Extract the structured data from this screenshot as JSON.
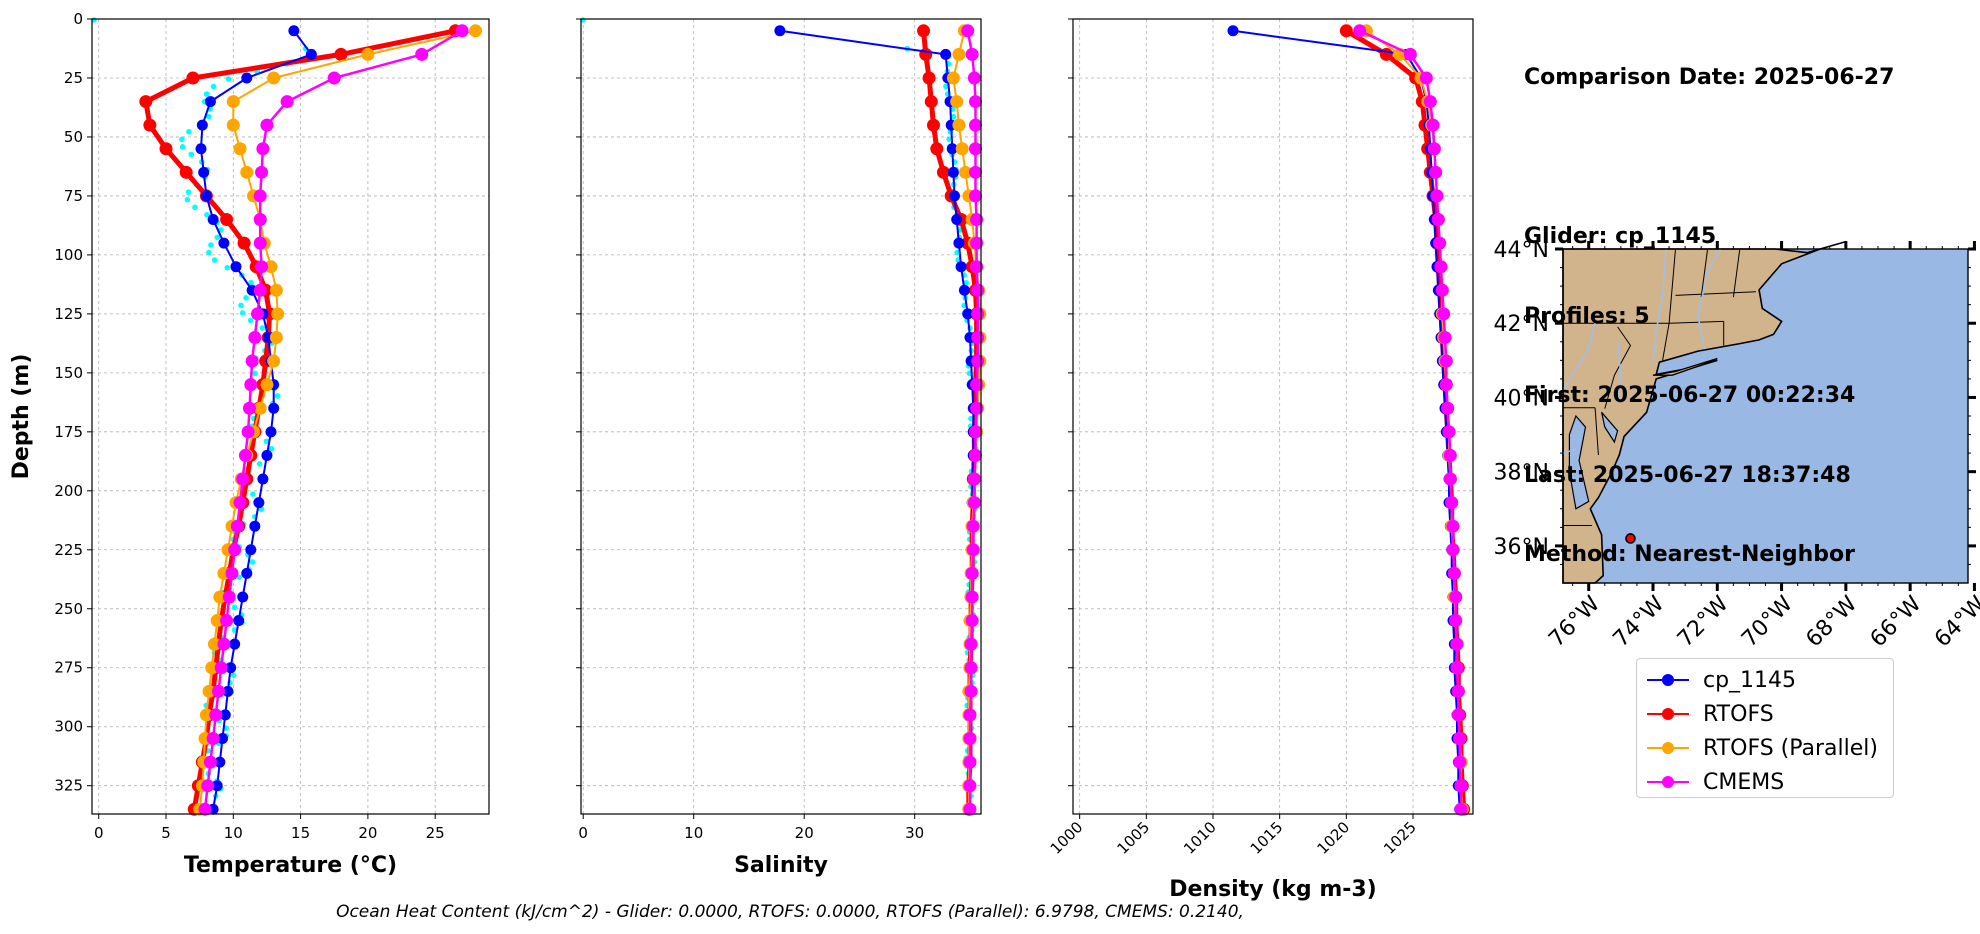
{
  "info": {
    "comparison_date": "Comparison Date: 2025-06-27",
    "glider": "Glider: cp_1145",
    "profiles": "Profiles: 5",
    "first": "First: 2025-06-27 00:22:34",
    "last": "Last: 2025-06-27 18:37:48",
    "method": "Method: Nearest-Neighbor"
  },
  "footer": "Ocean Heat Content (kJ/cm^2) - Glider: 0.0000,  RTOFS: 0.0000,  RTOFS (Parallel): 6.9798,  CMEMS: 0.2140,",
  "colors": {
    "glider": "#0000ff",
    "rtofs": "#ff0000",
    "rtofs_parallel": "#ffa500",
    "cmems": "#ff00ff",
    "raw": "#00ffff",
    "ocean": "#9ab8e4",
    "land": "#d2b48c"
  },
  "legend": [
    {
      "label": "cp_1145",
      "color": "#0000ff"
    },
    {
      "label": "RTOFS",
      "color": "#ff0000"
    },
    {
      "label": "RTOFS (Parallel)",
      "color": "#ffa500"
    },
    {
      "label": "CMEMS",
      "color": "#ff00ff"
    }
  ],
  "chart_data": [
    {
      "type": "line",
      "xlabel": "Temperature (°C)",
      "ylabel": "Depth (m)",
      "xlim": [
        -0.5,
        29
      ],
      "ylim": [
        337,
        0
      ],
      "xticks": [
        0,
        5,
        10,
        15,
        20,
        25
      ],
      "yticks": [
        0,
        25,
        50,
        75,
        100,
        125,
        150,
        175,
        200,
        225,
        250,
        275,
        300,
        325
      ],
      "grid": true,
      "depth": [
        5,
        15,
        25,
        35,
        45,
        55,
        65,
        75,
        85,
        95,
        105,
        115,
        125,
        135,
        145,
        155,
        165,
        175,
        185,
        195,
        205,
        215,
        225,
        235,
        245,
        255,
        265,
        275,
        285,
        295,
        305,
        315,
        325,
        335
      ],
      "series": [
        {
          "name": "cp_1145",
          "values": [
            14.5,
            15.8,
            11.0,
            8.3,
            7.7,
            7.6,
            7.8,
            8.0,
            8.5,
            9.3,
            10.2,
            11.4,
            12.2,
            12.6,
            12.8,
            13.0,
            13.0,
            12.8,
            12.5,
            12.2,
            11.9,
            11.6,
            11.3,
            11.0,
            10.7,
            10.4,
            10.1,
            9.8,
            9.6,
            9.4,
            9.2,
            9.0,
            8.8,
            8.5
          ]
        },
        {
          "name": "RTOFS",
          "values": [
            26.5,
            18,
            7,
            3.5,
            3.8,
            5.0,
            6.5,
            8.0,
            9.5,
            10.8,
            11.7,
            12.4,
            12.7,
            12.6,
            12.4,
            12.2,
            11.9,
            11.6,
            11.3,
            11.0,
            10.7,
            10.4,
            10.0,
            9.7,
            9.4,
            9.1,
            8.9,
            8.7,
            8.5,
            8.2,
            8.0,
            7.7,
            7.4,
            7.1
          ]
        },
        {
          "name": "RTOFS (Parallel)",
          "values": [
            28,
            20,
            13,
            10,
            10,
            10.5,
            11,
            11.5,
            12,
            12.3,
            12.8,
            13.2,
            13.3,
            13.2,
            13.0,
            12.5,
            12.0,
            11.5,
            11.0,
            10.6,
            10.2,
            9.9,
            9.6,
            9.3,
            9.0,
            8.8,
            8.6,
            8.4,
            8.2,
            8.0,
            7.9,
            7.8,
            7.7,
            7.5
          ]
        },
        {
          "name": "CMEMS",
          "values": [
            27,
            24,
            17.5,
            14,
            12.5,
            12.2,
            12.1,
            12.0,
            12.0,
            12.0,
            12.1,
            12.0,
            11.8,
            11.6,
            11.4,
            11.3,
            11.2,
            11.1,
            10.9,
            10.7,
            10.5,
            10.3,
            10.1,
            9.9,
            9.7,
            9.5,
            9.3,
            9.1,
            8.9,
            8.7,
            8.5,
            8.3,
            8.1,
            7.9
          ]
        }
      ]
    },
    {
      "type": "line",
      "xlabel": "Salinity",
      "ylim": [
        337,
        0
      ],
      "xlim": [
        -0.2,
        36
      ],
      "xticks": [
        0,
        10,
        20,
        30
      ],
      "grid": true,
      "depth": [
        5,
        15,
        25,
        35,
        45,
        55,
        65,
        75,
        85,
        95,
        105,
        115,
        125,
        135,
        145,
        155,
        165,
        175,
        185,
        195,
        205,
        215,
        225,
        235,
        245,
        255,
        265,
        275,
        285,
        295,
        305,
        315,
        325,
        335
      ],
      "series": [
        {
          "name": "cp_1145",
          "values": [
            17.8,
            32.8,
            33.0,
            33.2,
            33.3,
            33.4,
            33.5,
            33.6,
            33.8,
            34.0,
            34.2,
            34.5,
            34.8,
            35.0,
            35.1,
            35.2,
            35.3,
            35.3,
            35.3,
            35.3,
            35.2,
            35.2,
            35.2,
            35.1,
            35.1,
            35.1,
            35.0,
            35.0,
            35.0,
            35.0,
            34.9,
            34.9,
            34.9,
            34.9
          ]
        },
        {
          "name": "RTOFS",
          "values": [
            30.8,
            31.0,
            31.3,
            31.5,
            31.7,
            32.0,
            32.6,
            33.3,
            34.2,
            34.8,
            35.2,
            35.5,
            35.6,
            35.6,
            35.6,
            35.5,
            35.5,
            35.4,
            35.4,
            35.3,
            35.3,
            35.2,
            35.2,
            35.2,
            35.1,
            35.1,
            35.1,
            35.0,
            35.0,
            35.0,
            35.0,
            35.0,
            34.9,
            34.9
          ]
        },
        {
          "name": "RTOFS (Parallel)",
          "values": [
            34.5,
            34.0,
            33.5,
            33.8,
            34.0,
            34.3,
            34.6,
            34.9,
            35.2,
            35.4,
            35.6,
            35.8,
            35.9,
            35.9,
            35.9,
            35.8,
            35.7,
            35.6,
            35.5,
            35.4,
            35.3,
            35.2,
            35.2,
            35.1,
            35.1,
            35.0,
            35.0,
            35.0,
            34.9,
            34.9,
            34.9,
            34.9,
            34.9,
            34.9
          ]
        },
        {
          "name": "CMEMS",
          "values": [
            34.8,
            35.2,
            35.4,
            35.5,
            35.5,
            35.5,
            35.5,
            35.5,
            35.6,
            35.6,
            35.6,
            35.7,
            35.7,
            35.7,
            35.7,
            35.6,
            35.6,
            35.5,
            35.5,
            35.4,
            35.4,
            35.3,
            35.3,
            35.2,
            35.2,
            35.2,
            35.1,
            35.1,
            35.1,
            35.0,
            35.0,
            35.0,
            35.0,
            35.0
          ]
        }
      ]
    },
    {
      "type": "line",
      "xlabel": "Density (kg m-3)",
      "ylim": [
        337,
        0
      ],
      "xlim": [
        999.5,
        1029.5
      ],
      "xticks": [
        1000,
        1005,
        1010,
        1015,
        1020,
        1025
      ],
      "grid": true,
      "depth": [
        5,
        15,
        25,
        35,
        45,
        55,
        65,
        75,
        85,
        95,
        105,
        115,
        125,
        135,
        145,
        155,
        165,
        175,
        185,
        195,
        205,
        215,
        225,
        235,
        245,
        255,
        265,
        275,
        285,
        295,
        305,
        315,
        325,
        335
      ],
      "series": [
        {
          "name": "cp_1145",
          "values": [
            1011.5,
            1024.5,
            1025.6,
            1026.0,
            1026.2,
            1026.3,
            1026.4,
            1026.5,
            1026.6,
            1026.7,
            1026.8,
            1026.9,
            1027.0,
            1027.1,
            1027.2,
            1027.3,
            1027.4,
            1027.5,
            1027.6,
            1027.7,
            1027.7,
            1027.8,
            1027.9,
            1027.9,
            1028.0,
            1028.0,
            1028.1,
            1028.1,
            1028.2,
            1028.3,
            1028.3,
            1028.4,
            1028.4,
            1028.5
          ]
        },
        {
          "name": "RTOFS",
          "values": [
            1020.0,
            1023.0,
            1025.2,
            1025.7,
            1025.9,
            1026.1,
            1026.3,
            1026.5,
            1026.7,
            1026.8,
            1026.9,
            1027.0,
            1027.1,
            1027.2,
            1027.3,
            1027.4,
            1027.5,
            1027.6,
            1027.7,
            1027.8,
            1027.9,
            1027.9,
            1028.0,
            1028.1,
            1028.2,
            1028.2,
            1028.3,
            1028.4,
            1028.4,
            1028.5,
            1028.6,
            1028.6,
            1028.7,
            1028.8
          ]
        },
        {
          "name": "RTOFS (Parallel)",
          "values": [
            1021.5,
            1024.0,
            1025.6,
            1026.1,
            1026.4,
            1026.6,
            1026.7,
            1026.8,
            1026.9,
            1027.0,
            1027.1,
            1027.2,
            1027.2,
            1027.3,
            1027.4,
            1027.5,
            1027.6,
            1027.7,
            1027.7,
            1027.8,
            1027.9,
            1027.9,
            1028.0,
            1028.1,
            1028.1,
            1028.2,
            1028.3,
            1028.3,
            1028.4,
            1028.4,
            1028.5,
            1028.6,
            1028.6,
            1028.7
          ]
        },
        {
          "name": "CMEMS",
          "values": [
            1021.0,
            1024.8,
            1026.0,
            1026.3,
            1026.5,
            1026.6,
            1026.7,
            1026.8,
            1026.9,
            1027.0,
            1027.1,
            1027.2,
            1027.3,
            1027.4,
            1027.5,
            1027.5,
            1027.6,
            1027.7,
            1027.8,
            1027.8,
            1027.9,
            1028.0,
            1028.0,
            1028.1,
            1028.2,
            1028.2,
            1028.3,
            1028.3,
            1028.4,
            1028.4,
            1028.5,
            1028.5,
            1028.6,
            1028.6
          ]
        }
      ]
    }
  ],
  "map": {
    "lat_ticks": [
      "44°N",
      "42°N",
      "40°N",
      "38°N",
      "36°N"
    ],
    "lon_ticks": [
      "76°W",
      "74°W",
      "72°W",
      "70°W",
      "68°W",
      "66°W",
      "64°W"
    ],
    "lat_values": [
      44,
      42,
      40,
      38,
      36
    ],
    "lon_values": [
      -76,
      -74,
      -72,
      -70,
      -68,
      -66,
      -64
    ],
    "lon_range": [
      -76.8,
      -64.2
    ],
    "lat_range": [
      35.0,
      44.0
    ],
    "glider_location": {
      "lon": -74.7,
      "lat": 36.2
    }
  }
}
